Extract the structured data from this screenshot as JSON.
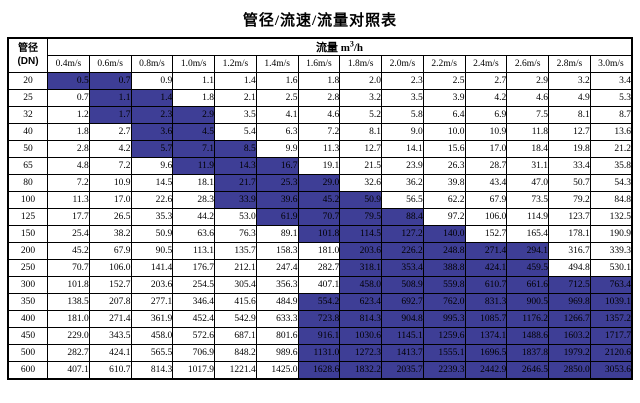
{
  "title": "管径/流速/流量对照表",
  "table": {
    "corner": {
      "line1": "管径",
      "line2": "(DN)"
    },
    "flow_header": {
      "label": "流量",
      "unit_base": "m",
      "unit_sup": "3",
      "unit_suffix": "/h"
    },
    "velocity_headers": [
      "0.4m/s",
      "0.6m/s",
      "0.8m/s",
      "1.0m/s",
      "1.2m/s",
      "1.4m/s",
      "1.6m/s",
      "1.8m/s",
      "2.0m/s",
      "2.2m/s",
      "2.4m/s",
      "2.6m/s",
      "2.8m/s",
      "3.0m/s"
    ],
    "highlight_color": "#3E3E96",
    "rows": [
      {
        "dn": "20",
        "values": [
          "0.5",
          "0.7",
          "0.9",
          "1.1",
          "1.4",
          "1.6",
          "1.8",
          "2.0",
          "2.3",
          "2.5",
          "2.7",
          "2.9",
          "3.2",
          "3.4"
        ],
        "highlight": [
          0,
          1
        ]
      },
      {
        "dn": "25",
        "values": [
          "0.7",
          "1.1",
          "1.4",
          "1.8",
          "2.1",
          "2.5",
          "2.8",
          "3.2",
          "3.5",
          "3.9",
          "4.2",
          "4.6",
          "4.9",
          "5.3"
        ],
        "highlight": [
          1,
          2
        ]
      },
      {
        "dn": "32",
        "values": [
          "1.2",
          "1.7",
          "2.3",
          "2.9",
          "3.5",
          "4.1",
          "4.6",
          "5.2",
          "5.8",
          "6.4",
          "6.9",
          "7.5",
          "8.1",
          "8.7"
        ],
        "highlight": [
          1,
          3
        ]
      },
      {
        "dn": "40",
        "values": [
          "1.8",
          "2.7",
          "3.6",
          "4.5",
          "5.4",
          "6.3",
          "7.2",
          "8.1",
          "9.0",
          "10.0",
          "10.9",
          "11.8",
          "12.7",
          "13.6"
        ],
        "highlight": [
          2,
          3
        ]
      },
      {
        "dn": "50",
        "values": [
          "2.8",
          "4.2",
          "5.7",
          "7.1",
          "8.5",
          "9.9",
          "11.3",
          "12.7",
          "14.1",
          "15.6",
          "17.0",
          "18.4",
          "19.8",
          "21.2"
        ],
        "highlight": [
          2,
          4
        ]
      },
      {
        "dn": "65",
        "values": [
          "4.8",
          "7.2",
          "9.6",
          "11.9",
          "14.3",
          "16.7",
          "19.1",
          "21.5",
          "23.9",
          "26.3",
          "28.7",
          "31.1",
          "33.4",
          "35.8"
        ],
        "highlight": [
          3,
          5
        ]
      },
      {
        "dn": "80",
        "values": [
          "7.2",
          "10.9",
          "14.5",
          "18.1",
          "21.7",
          "25.3",
          "29.0",
          "32.6",
          "36.2",
          "39.8",
          "43.4",
          "47.0",
          "50.7",
          "54.3"
        ],
        "highlight": [
          4,
          6
        ]
      },
      {
        "dn": "100",
        "values": [
          "11.3",
          "17.0",
          "22.6",
          "28.3",
          "33.9",
          "39.6",
          "45.2",
          "50.9",
          "56.5",
          "62.2",
          "67.9",
          "73.5",
          "79.2",
          "84.8"
        ],
        "highlight": [
          4,
          7
        ]
      },
      {
        "dn": "125",
        "values": [
          "17.7",
          "26.5",
          "35.3",
          "44.2",
          "53.0",
          "61.9",
          "70.7",
          "79.5",
          "88.4",
          "97.2",
          "106.0",
          "114.9",
          "123.7",
          "132.5"
        ],
        "highlight": [
          5,
          8
        ]
      },
      {
        "dn": "150",
        "values": [
          "25.4",
          "38.2",
          "50.9",
          "63.6",
          "76.3",
          "89.1",
          "101.8",
          "114.5",
          "127.2",
          "140.0",
          "152.7",
          "165.4",
          "178.1",
          "190.9"
        ],
        "highlight": [
          6,
          9
        ]
      },
      {
        "dn": "200",
        "values": [
          "45.2",
          "67.9",
          "90.5",
          "113.1",
          "135.7",
          "158.3",
          "181.0",
          "203.6",
          "226.2",
          "248.8",
          "271.4",
          "294.1",
          "316.7",
          "339.3"
        ],
        "highlight": [
          7,
          11
        ]
      },
      {
        "dn": "250",
        "values": [
          "70.7",
          "106.0",
          "141.4",
          "176.7",
          "212.1",
          "247.4",
          "282.7",
          "318.1",
          "353.4",
          "388.8",
          "424.1",
          "459.5",
          "494.8",
          "530.1"
        ],
        "highlight": [
          7,
          11
        ]
      },
      {
        "dn": "300",
        "values": [
          "101.8",
          "152.7",
          "203.6",
          "254.5",
          "305.4",
          "356.3",
          "407.1",
          "458.0",
          "508.9",
          "559.8",
          "610.7",
          "661.6",
          "712.5",
          "763.4"
        ],
        "highlight": [
          7,
          13
        ]
      },
      {
        "dn": "350",
        "values": [
          "138.5",
          "207.8",
          "277.1",
          "346.4",
          "415.6",
          "484.9",
          "554.2",
          "623.4",
          "692.7",
          "762.0",
          "831.3",
          "900.5",
          "969.8",
          "1039.1"
        ],
        "highlight": [
          6,
          13
        ]
      },
      {
        "dn": "400",
        "values": [
          "181.0",
          "271.4",
          "361.9",
          "452.4",
          "542.9",
          "633.3",
          "723.8",
          "814.3",
          "904.8",
          "995.3",
          "1085.7",
          "1176.2",
          "1266.7",
          "1357.2"
        ],
        "highlight": [
          6,
          13
        ]
      },
      {
        "dn": "450",
        "values": [
          "229.0",
          "343.5",
          "458.0",
          "572.6",
          "687.1",
          "801.6",
          "916.1",
          "1030.6",
          "1145.1",
          "1259.6",
          "1374.1",
          "1488.6",
          "1603.2",
          "1717.7"
        ],
        "highlight": [
          6,
          13
        ]
      },
      {
        "dn": "500",
        "values": [
          "282.7",
          "424.1",
          "565.5",
          "706.9",
          "848.2",
          "989.6",
          "1131.0",
          "1272.3",
          "1413.7",
          "1555.1",
          "1696.5",
          "1837.8",
          "1979.2",
          "2120.6"
        ],
        "highlight": [
          6,
          13
        ]
      },
      {
        "dn": "600",
        "values": [
          "407.1",
          "610.7",
          "814.3",
          "1017.9",
          "1221.4",
          "1425.0",
          "1628.6",
          "1832.2",
          "2035.7",
          "2239.3",
          "2442.9",
          "2646.5",
          "2850.0",
          "3053.6"
        ],
        "highlight": [
          6,
          13
        ]
      }
    ]
  }
}
